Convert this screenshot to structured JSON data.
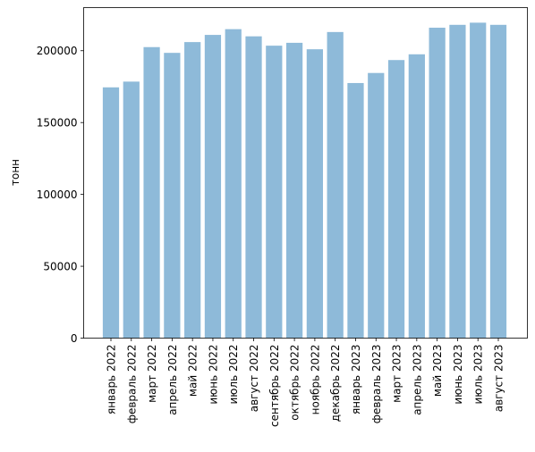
{
  "chart_data": {
    "type": "bar",
    "ylabel": "тонн",
    "xlabel": "",
    "title": "",
    "ylim": [
      0,
      230000
    ],
    "yticks": [
      0,
      50000,
      100000,
      150000,
      200000
    ],
    "ytick_labels": [
      "0",
      "50000",
      "100000",
      "150000",
      "200000"
    ],
    "bar_color": "#8ebad9",
    "grid": false,
    "categories": [
      "январь 2022",
      "февраль 2022",
      "март 2022",
      "апрель 2022",
      "май 2022",
      "июнь 2022",
      "июль 2022",
      "август 2022",
      "сентябрь 2022",
      "октябрь 2022",
      "ноябрь 2022",
      "декабрь 2022",
      "январь 2023",
      "февраль 2023",
      "март 2023",
      "апрель 2023",
      "май 2023",
      "июнь 2023",
      "июль 2023",
      "август 2023"
    ],
    "values": [
      174500,
      178500,
      202500,
      198500,
      206000,
      211000,
      215000,
      210000,
      203500,
      205500,
      201000,
      213000,
      177500,
      184500,
      193500,
      197500,
      216000,
      218000,
      219500,
      218000
    ]
  }
}
